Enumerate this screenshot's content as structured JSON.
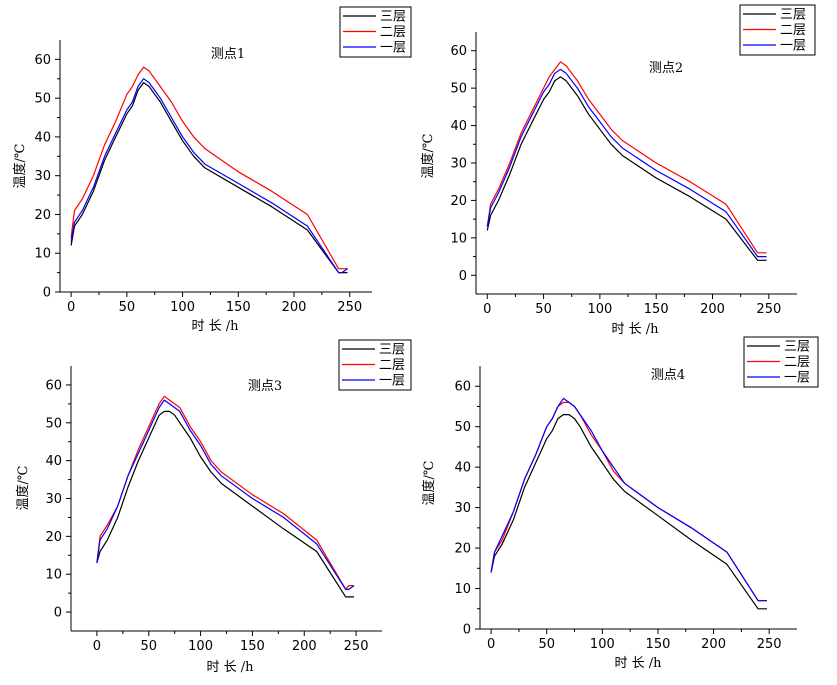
{
  "chart_data": [
    {
      "type": "line",
      "title": "测点1",
      "xlabel": "时 长 /h",
      "ylabel": "温度/℃",
      "xlim": [
        -10,
        270
      ],
      "ylim": [
        0,
        65
      ],
      "xticks": [
        0,
        50,
        100,
        150,
        200,
        250
      ],
      "yticks": [
        0,
        10,
        20,
        30,
        40,
        50,
        60
      ],
      "legend_position": "top-right",
      "series": [
        {
          "name": "三层",
          "color": "#000000",
          "x": [
            0,
            3,
            10,
            20,
            30,
            40,
            50,
            55,
            60,
            65,
            70,
            75,
            80,
            90,
            100,
            110,
            120,
            150,
            180,
            212,
            240,
            243,
            248
          ],
          "y": [
            12,
            17,
            20,
            26,
            34,
            40,
            46,
            48,
            52,
            54,
            53,
            51,
            49,
            44,
            39,
            35,
            32,
            27,
            22,
            16,
            5,
            5,
            5
          ]
        },
        {
          "name": "二层",
          "color": "#ff0000",
          "x": [
            0,
            3,
            10,
            20,
            30,
            40,
            50,
            55,
            60,
            65,
            70,
            75,
            80,
            90,
            100,
            110,
            120,
            150,
            180,
            212,
            240,
            243,
            248
          ],
          "y": [
            14,
            21,
            24,
            30,
            38,
            44,
            51,
            53,
            56,
            58,
            57,
            55,
            53,
            49,
            44,
            40,
            37,
            31,
            26,
            20,
            6,
            6,
            6
          ]
        },
        {
          "name": "一层",
          "color": "#0000ff",
          "x": [
            0,
            3,
            10,
            20,
            30,
            40,
            50,
            55,
            60,
            65,
            70,
            75,
            80,
            90,
            100,
            110,
            120,
            150,
            180,
            212,
            240,
            243,
            248
          ],
          "y": [
            13,
            18,
            21,
            27,
            35,
            41,
            47,
            49,
            53,
            55,
            54,
            52,
            50,
            45,
            40,
            36,
            33,
            28,
            23,
            17,
            5,
            5,
            6
          ]
        }
      ]
    },
    {
      "type": "line",
      "title": "测点2",
      "xlabel": "时 长 /h",
      "ylabel": "温度/℃",
      "xlim": [
        -10,
        275
      ],
      "ylim": [
        -5,
        65
      ],
      "xticks": [
        0,
        50,
        100,
        150,
        200,
        250
      ],
      "yticks": [
        0,
        10,
        20,
        30,
        40,
        50,
        60
      ],
      "legend_position": "top-right",
      "series": [
        {
          "name": "三层",
          "color": "#000000",
          "x": [
            0,
            3,
            10,
            20,
            30,
            40,
            50,
            55,
            60,
            65,
            70,
            75,
            80,
            90,
            100,
            110,
            120,
            150,
            180,
            212,
            240,
            243,
            248
          ],
          "y": [
            12,
            16,
            20,
            27,
            35,
            41,
            47,
            49,
            52,
            53,
            52,
            50,
            48,
            43,
            39,
            35,
            32,
            26,
            21,
            15,
            4,
            4,
            4
          ]
        },
        {
          "name": "二层",
          "color": "#ff0000",
          "x": [
            0,
            3,
            10,
            20,
            30,
            40,
            50,
            55,
            60,
            65,
            70,
            75,
            80,
            90,
            100,
            110,
            120,
            150,
            180,
            212,
            240,
            243,
            248
          ],
          "y": [
            13,
            19,
            23,
            30,
            38,
            44,
            50,
            53,
            55,
            57,
            56,
            54,
            52,
            47,
            43,
            39,
            36,
            30,
            25,
            19,
            6,
            6,
            6
          ]
        },
        {
          "name": "一层",
          "color": "#0000ff",
          "x": [
            0,
            3,
            10,
            20,
            30,
            40,
            50,
            55,
            60,
            65,
            70,
            75,
            80,
            90,
            100,
            110,
            120,
            150,
            180,
            212,
            240,
            243,
            248
          ],
          "y": [
            13,
            18,
            22,
            29,
            37,
            43,
            49,
            51,
            54,
            55,
            54,
            52,
            50,
            45,
            41,
            37,
            34,
            28,
            23,
            17,
            5,
            5,
            5
          ]
        }
      ]
    },
    {
      "type": "line",
      "title": "测点3",
      "xlabel": "时 长 /h",
      "ylabel": "温度/℃",
      "xlim": [
        -25,
        275
      ],
      "ylim": [
        -5,
        65
      ],
      "xticks": [
        0,
        50,
        100,
        150,
        200,
        250
      ],
      "yticks": [
        0,
        10,
        20,
        30,
        40,
        50,
        60
      ],
      "legend_position": "top-right",
      "series": [
        {
          "name": "三层",
          "color": "#000000",
          "x": [
            0,
            3,
            10,
            20,
            30,
            40,
            50,
            55,
            60,
            65,
            70,
            75,
            80,
            90,
            100,
            110,
            120,
            150,
            180,
            212,
            240,
            243,
            248
          ],
          "y": [
            13,
            16,
            19,
            25,
            33,
            40,
            46,
            49,
            52,
            53,
            53,
            52,
            50,
            46,
            41,
            37,
            34,
            28,
            22,
            16,
            4,
            4,
            4
          ]
        },
        {
          "name": "二层",
          "color": "#ff0000",
          "x": [
            0,
            3,
            10,
            20,
            30,
            40,
            50,
            55,
            60,
            65,
            70,
            75,
            80,
            90,
            100,
            110,
            120,
            150,
            180,
            212,
            240,
            243,
            248
          ],
          "y": [
            13,
            20,
            23,
            28,
            36,
            43,
            49,
            52,
            55,
            57,
            56,
            55,
            54,
            49,
            45,
            40,
            37,
            31,
            26,
            19,
            6,
            7,
            7
          ]
        },
        {
          "name": "一层",
          "color": "#0000ff",
          "x": [
            0,
            3,
            10,
            20,
            30,
            40,
            50,
            55,
            60,
            65,
            70,
            75,
            80,
            90,
            100,
            110,
            120,
            150,
            180,
            212,
            240,
            243,
            248
          ],
          "y": [
            13,
            19,
            22,
            28,
            36,
            42,
            48,
            51,
            54,
            56,
            55,
            54,
            53,
            48,
            44,
            39,
            36,
            30,
            25,
            18,
            6,
            6,
            7
          ]
        }
      ]
    },
    {
      "type": "line",
      "title": "测点4",
      "xlabel": "时 长 /h",
      "ylabel": "温度/℃",
      "xlim": [
        -10,
        275
      ],
      "ylim": [
        0,
        65
      ],
      "xticks": [
        0,
        50,
        100,
        150,
        200,
        250
      ],
      "yticks": [
        0,
        10,
        20,
        30,
        40,
        50,
        60
      ],
      "legend_position": "top-right",
      "series": [
        {
          "name": "三层",
          "color": "#000000",
          "x": [
            0,
            3,
            10,
            20,
            30,
            40,
            50,
            55,
            60,
            65,
            70,
            75,
            80,
            90,
            100,
            110,
            120,
            150,
            180,
            212,
            240,
            243,
            248
          ],
          "y": [
            14,
            18,
            21,
            27,
            35,
            41,
            47,
            49,
            52,
            53,
            53,
            52,
            50,
            45,
            41,
            37,
            34,
            28,
            22,
            16,
            5,
            5,
            5
          ]
        },
        {
          "name": "二层",
          "color": "#ff0000",
          "x": [
            0,
            3,
            10,
            20,
            30,
            40,
            50,
            55,
            60,
            65,
            70,
            75,
            80,
            90,
            100,
            110,
            120,
            150,
            180,
            212,
            240,
            243,
            248
          ],
          "y": [
            14,
            19,
            22,
            29,
            37,
            43,
            50,
            52,
            55,
            56,
            56,
            55,
            53,
            48,
            44,
            39,
            36,
            30,
            25,
            19,
            7,
            7,
            7
          ]
        },
        {
          "name": "一层",
          "color": "#0000ff",
          "x": [
            0,
            3,
            10,
            20,
            30,
            40,
            50,
            55,
            60,
            65,
            70,
            75,
            80,
            90,
            100,
            110,
            120,
            150,
            180,
            212,
            240,
            243,
            248
          ],
          "y": [
            14,
            19,
            23,
            29,
            37,
            43,
            50,
            52,
            55,
            57,
            56,
            55,
            53,
            49,
            44,
            40,
            36,
            30,
            25,
            19,
            7,
            7,
            7
          ]
        }
      ]
    }
  ]
}
